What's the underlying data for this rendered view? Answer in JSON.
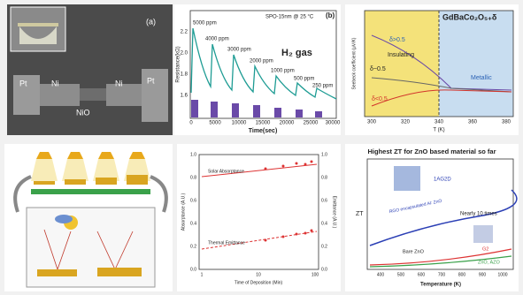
{
  "panel_a": {
    "label": "(a)",
    "labels": [
      "Pt",
      "Ni",
      "NiO",
      "Ni",
      "Pt"
    ]
  },
  "panel_b": {
    "label": "(b)",
    "condition": "SPO-15nm @ 25 °C",
    "gas": "H₂ gas",
    "concentrations": [
      "5000 ppm",
      "4000 ppm",
      "3000 ppm",
      "2000 ppm",
      "1000 ppm",
      "500 ppm",
      "250 ppm"
    ],
    "y_label": "Resistance(kΩ)",
    "y_ticks": [
      "2.2",
      "2.0",
      "1.8",
      "1.6"
    ],
    "x_label": "Time(sec)",
    "x_ticks": [
      "0",
      "5000",
      "10000",
      "15000",
      "20000",
      "25000",
      "30000"
    ]
  },
  "panel_c": {
    "formula": "GdBaCo₂O₅₊δ",
    "regions": [
      "Insulating",
      "Metallic"
    ],
    "deltas": [
      "δ>0.5",
      "δ~0.5",
      "δ<0.5"
    ],
    "y_label": "Seebeck coefficient (μV/K)",
    "x_label": "T (K)",
    "x_ticks": [
      "300",
      "320",
      "340",
      "360",
      "380"
    ]
  },
  "panel_e": {
    "series": [
      "Solar Absorptance",
      "Thermal Emittance"
    ],
    "y_label": "Absorptance (A.U.)",
    "y2_label": "Emittance (A.U.)",
    "x_label": "Time of Deposition (Min)",
    "x_ticks": [
      "1",
      "10",
      "100"
    ],
    "y_ticks": [
      "1.0",
      "0.8",
      "0.6",
      "0.4",
      "0.2",
      "0.0"
    ]
  },
  "panel_f": {
    "title": "Highest ZT for ZnO based material so far",
    "labels": [
      "1AG2D",
      "RGO encapsulated Al: ZnO",
      "Nearly 10 times",
      "Bare ZnO",
      "G2",
      "ZnO, AZO"
    ],
    "y_label": "ZT",
    "x_label": "Temperature (K)",
    "x_ticks": [
      "400",
      "500",
      "600",
      "700",
      "800",
      "900",
      "1000"
    ]
  }
}
